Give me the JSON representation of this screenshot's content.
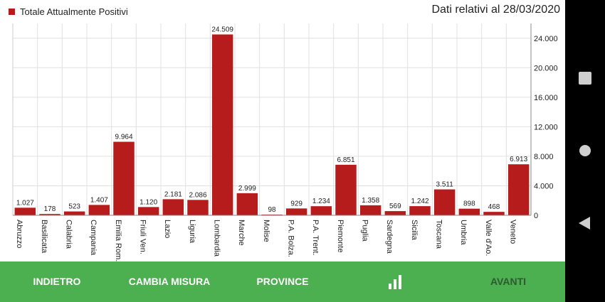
{
  "legend": {
    "label": "Totale Attualmente Positivi"
  },
  "date_label": "Dati relativi al 28/03/2020",
  "colors": {
    "bar": "#b71c1c",
    "bottom_bar": "#4caf50",
    "disabled_text": "#2e5a2f"
  },
  "bottom_bar": {
    "back": "INDIETRO",
    "change_measure": "CAMBIA MISURA",
    "provinces": "PROVINCE",
    "chart_icon": "bar-chart-icon",
    "next": "AVANTI"
  },
  "chart_data": {
    "type": "bar",
    "categories": [
      "Abruzzo",
      "Basilicata",
      "Calabria",
      "Campania",
      "Emilia Rom.",
      "Friuli Ven.",
      "Lazio",
      "Liguria",
      "Lombardia",
      "Marche",
      "Molise",
      "P.A. Bolza.",
      "P.A. Trent.",
      "Piemonte",
      "Puglia",
      "Sardegna",
      "Sicilia",
      "Toscana",
      "Umbria",
      "Valle d'Ao.",
      "Veneto"
    ],
    "values": [
      1027,
      178,
      523,
      1407,
      9964,
      1120,
      2181,
      2086,
      24509,
      2999,
      98,
      929,
      1234,
      6851,
      1358,
      569,
      1242,
      3511,
      898,
      468,
      6913
    ],
    "value_labels": [
      "1.027",
      "178",
      "523",
      "1.407",
      "9.964",
      "1.120",
      "2.181",
      "2.086",
      "24.509",
      "2.999",
      "98",
      "929",
      "1.234",
      "6.851",
      "1.358",
      "569",
      "1.242",
      "3.511",
      "898",
      "468",
      "6.913"
    ],
    "series": [
      {
        "name": "Totale Attualmente Positivi"
      }
    ],
    "yticks": [
      "0",
      "4.000",
      "8.000",
      "12.000",
      "16.000",
      "20.000",
      "24.000"
    ],
    "ylim": [
      0,
      26000
    ],
    "y_axis_position": "right",
    "grid": true,
    "legend_position": "top-left",
    "title": "",
    "xlabel": "",
    "ylabel": ""
  },
  "navigation": {
    "recents": "square-icon",
    "home": "circle-icon",
    "back": "triangle-back-icon"
  }
}
